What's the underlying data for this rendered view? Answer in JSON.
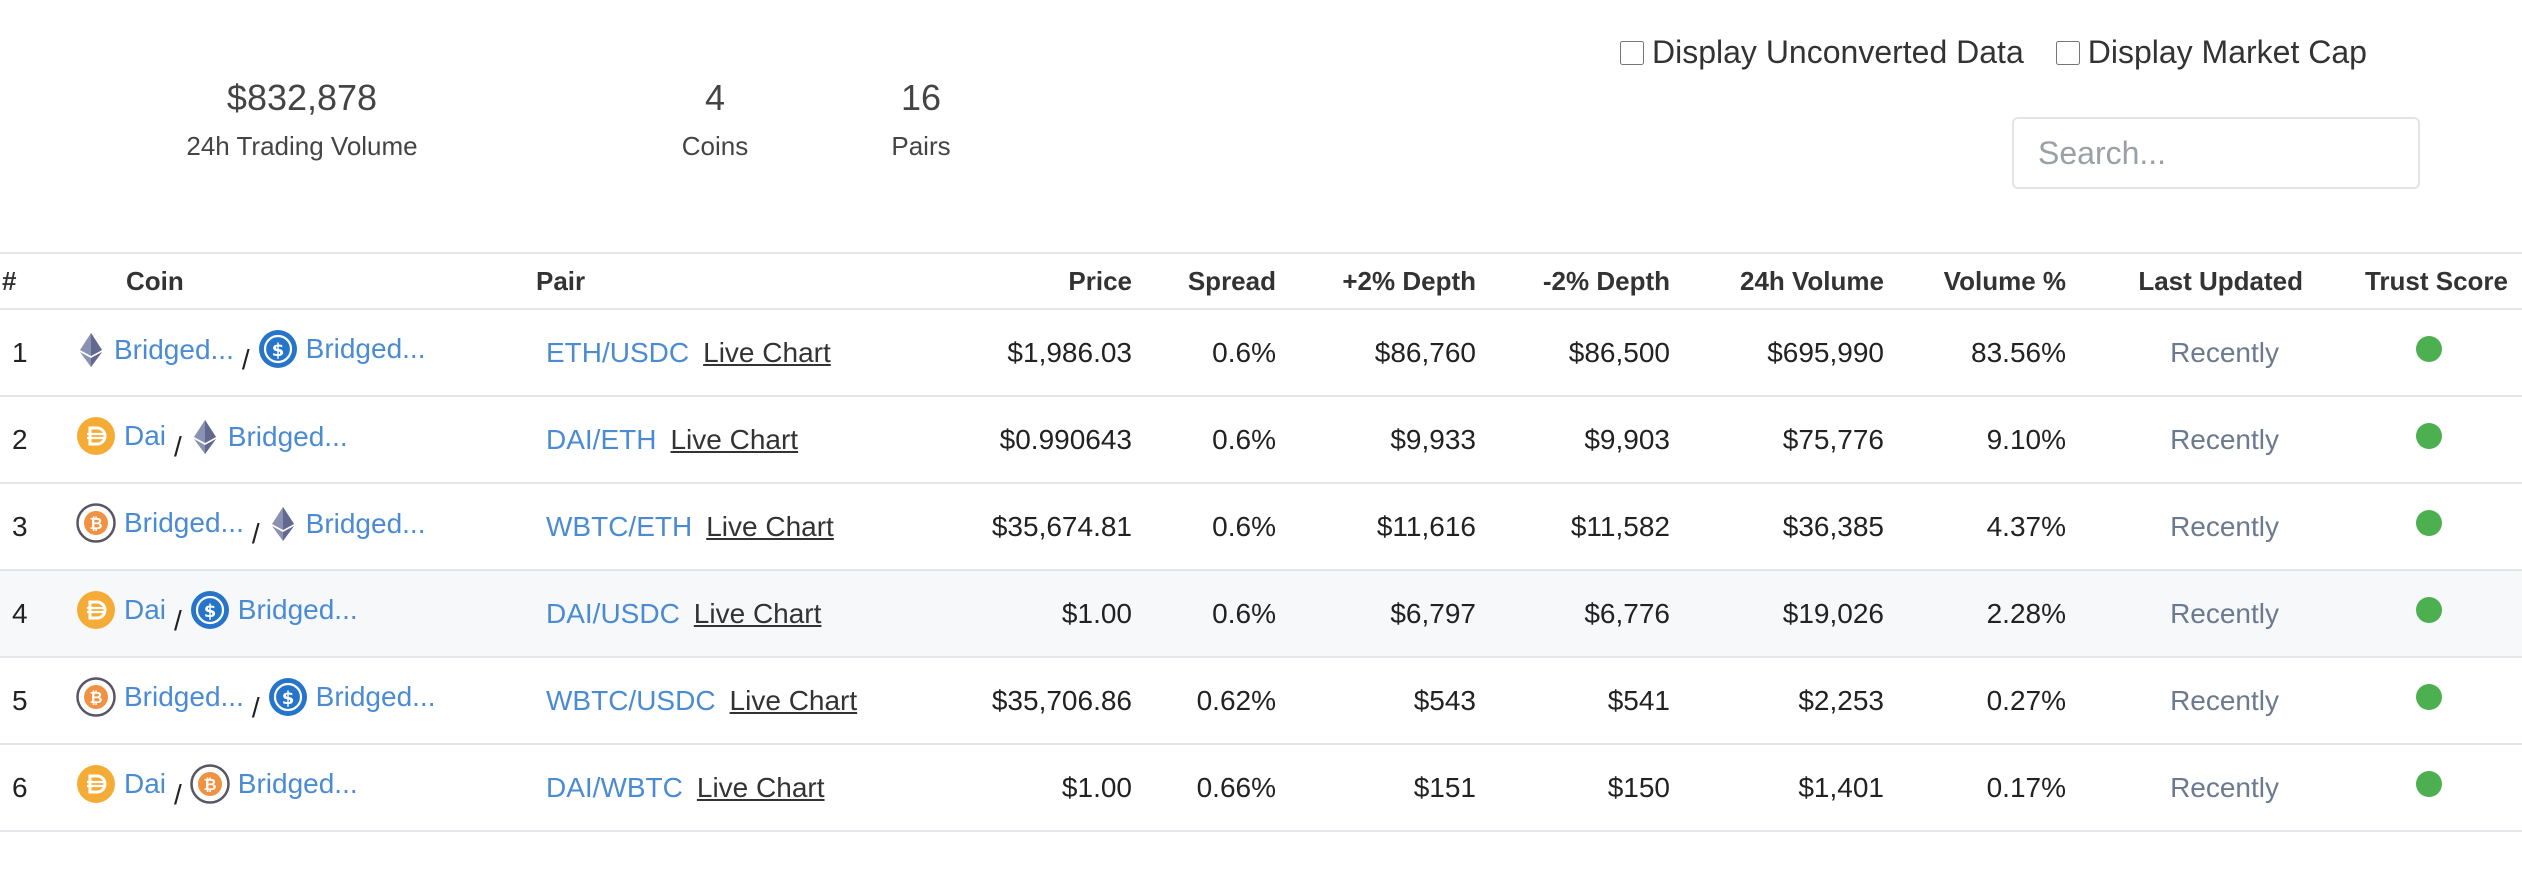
{
  "stats": [
    {
      "value": "$832,878",
      "label": "24h Trading Volume"
    },
    {
      "value": "4",
      "label": "Coins"
    },
    {
      "value": "16",
      "label": "Pairs"
    }
  ],
  "toggles": {
    "unconverted": "Display Unconverted Data",
    "market_cap": "Display Market Cap"
  },
  "search": {
    "placeholder": "Search..."
  },
  "table": {
    "headers": [
      "#",
      "Coin",
      "Pair",
      "Price",
      "Spread",
      "+2% Depth",
      "-2% Depth",
      "24h Volume",
      "Volume %",
      "Last Updated",
      "Trust Score"
    ],
    "trust_color": "#4caf50",
    "rows": [
      {
        "rank": "1",
        "base": "Bridged...",
        "base_icon": "eth-icon",
        "target": "Bridged...",
        "target_icon": "usdc-icon",
        "pair": "ETH/USDC",
        "live": "Live Chart",
        "price": "$1,986.03",
        "spread": "0.6%",
        "depth_up": "$86,760",
        "depth_down": "$86,500",
        "volume": "$695,990",
        "volume_pct": "83.56%",
        "updated": "Recently"
      },
      {
        "rank": "2",
        "base": "Dai",
        "base_icon": "dai-icon",
        "target": "Bridged...",
        "target_icon": "eth-icon",
        "pair": "DAI/ETH",
        "live": "Live Chart",
        "price": "$0.990643",
        "spread": "0.6%",
        "depth_up": "$9,933",
        "depth_down": "$9,903",
        "volume": "$75,776",
        "volume_pct": "9.10%",
        "updated": "Recently"
      },
      {
        "rank": "3",
        "base": "Bridged...",
        "base_icon": "wbtc-icon",
        "target": "Bridged...",
        "target_icon": "eth-icon",
        "pair": "WBTC/ETH",
        "live": "Live Chart",
        "price": "$35,674.81",
        "spread": "0.6%",
        "depth_up": "$11,616",
        "depth_down": "$11,582",
        "volume": "$36,385",
        "volume_pct": "4.37%",
        "updated": "Recently"
      },
      {
        "rank": "4",
        "base": "Dai",
        "base_icon": "dai-icon",
        "target": "Bridged...",
        "target_icon": "usdc-icon",
        "pair": "DAI/USDC",
        "live": "Live Chart",
        "price": "$1.00",
        "spread": "0.6%",
        "depth_up": "$6,797",
        "depth_down": "$6,776",
        "volume": "$19,026",
        "volume_pct": "2.28%",
        "updated": "Recently"
      },
      {
        "rank": "5",
        "base": "Bridged...",
        "base_icon": "wbtc-icon",
        "target": "Bridged...",
        "target_icon": "usdc-icon",
        "pair": "WBTC/USDC",
        "live": "Live Chart",
        "price": "$35,706.86",
        "spread": "0.62%",
        "depth_up": "$543",
        "depth_down": "$541",
        "volume": "$2,253",
        "volume_pct": "0.27%",
        "updated": "Recently"
      },
      {
        "rank": "6",
        "base": "Dai",
        "base_icon": "dai-icon",
        "target": "Bridged...",
        "target_icon": "wbtc-icon",
        "pair": "DAI/WBTC",
        "live": "Live Chart",
        "price": "$1.00",
        "spread": "0.66%",
        "depth_up": "$151",
        "depth_down": "$150",
        "volume": "$1,401",
        "volume_pct": "0.17%",
        "updated": "Recently"
      }
    ]
  }
}
